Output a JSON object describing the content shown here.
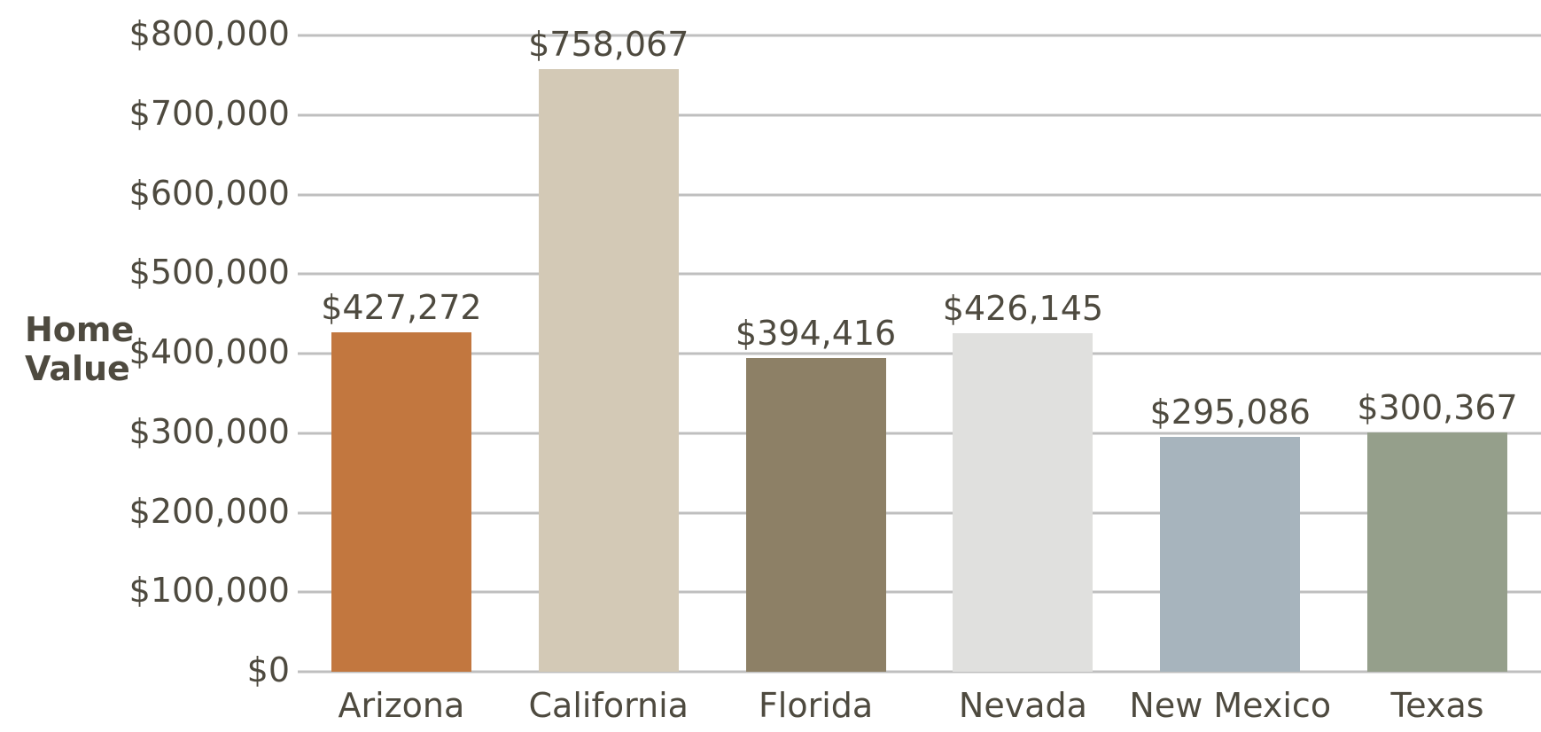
{
  "chart_data": {
    "type": "bar",
    "title": "",
    "ylabel": "Home Value",
    "ylabel_lines": [
      "Home",
      "Value"
    ],
    "xlabel": "",
    "categories": [
      "Arizona",
      "California",
      "Florida",
      "Nevada",
      "New Mexico",
      "Texas"
    ],
    "values": [
      427272,
      758067,
      394416,
      426145,
      295086,
      300367
    ],
    "data_labels": [
      "$427,272",
      "$758,067",
      "$394,416",
      "$426,145",
      "$295,086",
      "$300,367"
    ],
    "bar_colors": [
      "#C2773F",
      "#D3C9B6",
      "#8D8066",
      "#E0E0DE",
      "#A7B4BD",
      "#959F8B"
    ],
    "ylim": [
      0,
      800000
    ],
    "ytick_interval": 100000,
    "yticks": [
      "$0",
      "$100,000",
      "$200,000",
      "$300,000",
      "$400,000",
      "$500,000",
      "$600,000",
      "$700,000",
      "$800,000"
    ],
    "grid": true,
    "legend": false,
    "gridline_color": "#BFBFBF",
    "text_color": "#4E4A3F"
  }
}
